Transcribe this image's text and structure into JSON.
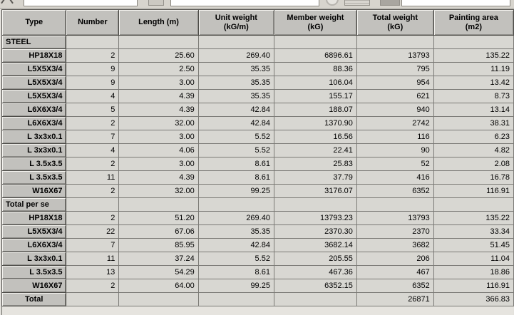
{
  "toolbar": {
    "inputs": [
      {
        "value": ""
      },
      {
        "value": ""
      },
      {
        "value": ""
      }
    ]
  },
  "table": {
    "columns": [
      {
        "id": "type",
        "label_lines": [
          "Type"
        ]
      },
      {
        "id": "number",
        "label_lines": [
          "Number"
        ]
      },
      {
        "id": "length",
        "label_lines": [
          "Length (m)"
        ]
      },
      {
        "id": "unit-weight",
        "label_lines": [
          "Unit weight",
          "(kG/m)"
        ]
      },
      {
        "id": "member-weight",
        "label_lines": [
          "Member weight",
          "(kG)"
        ]
      },
      {
        "id": "total-weight",
        "label_lines": [
          "Total weight",
          "(kG)"
        ]
      },
      {
        "id": "painting-area",
        "label_lines": [
          "Painting area",
          "(m2)"
        ]
      }
    ],
    "rows": [
      {
        "kind": "section",
        "type": "STEEL"
      },
      {
        "kind": "data",
        "type": "HP18X18",
        "values": [
          "2",
          "25.60",
          "269.40",
          "6896.61",
          "13793",
          "135.22"
        ]
      },
      {
        "kind": "data",
        "type": "L5X5X3/4",
        "values": [
          "9",
          "2.50",
          "35.35",
          "88.36",
          "795",
          "11.19"
        ]
      },
      {
        "kind": "data",
        "type": "L5X5X3/4",
        "values": [
          "9",
          "3.00",
          "35.35",
          "106.04",
          "954",
          "13.42"
        ]
      },
      {
        "kind": "data",
        "type": "L5X5X3/4",
        "values": [
          "4",
          "4.39",
          "35.35",
          "155.17",
          "621",
          "8.73"
        ]
      },
      {
        "kind": "data",
        "type": "L6X6X3/4",
        "values": [
          "5",
          "4.39",
          "42.84",
          "188.07",
          "940",
          "13.14"
        ]
      },
      {
        "kind": "data",
        "type": "L6X6X3/4",
        "values": [
          "2",
          "32.00",
          "42.84",
          "1370.90",
          "2742",
          "38.31"
        ]
      },
      {
        "kind": "data",
        "type": "L 3x3x0.1",
        "values": [
          "7",
          "3.00",
          "5.52",
          "16.56",
          "116",
          "6.23"
        ]
      },
      {
        "kind": "data",
        "type": "L 3x3x0.1",
        "values": [
          "4",
          "4.06",
          "5.52",
          "22.41",
          "90",
          "4.82"
        ]
      },
      {
        "kind": "data",
        "type": "L 3.5x3.5",
        "values": [
          "2",
          "3.00",
          "8.61",
          "25.83",
          "52",
          "2.08"
        ]
      },
      {
        "kind": "data",
        "type": "L 3.5x3.5",
        "values": [
          "11",
          "4.39",
          "8.61",
          "37.79",
          "416",
          "16.78"
        ]
      },
      {
        "kind": "data",
        "type": "W16X67",
        "values": [
          "2",
          "32.00",
          "99.25",
          "3176.07",
          "6352",
          "116.91"
        ]
      },
      {
        "kind": "section",
        "type": "Total per se"
      },
      {
        "kind": "data",
        "type": "HP18X18",
        "values": [
          "2",
          "51.20",
          "269.40",
          "13793.23",
          "13793",
          "135.22"
        ]
      },
      {
        "kind": "data",
        "type": "L5X5X3/4",
        "values": [
          "22",
          "67.06",
          "35.35",
          "2370.30",
          "2370",
          "33.34"
        ]
      },
      {
        "kind": "data",
        "type": "L6X6X3/4",
        "values": [
          "7",
          "85.95",
          "42.84",
          "3682.14",
          "3682",
          "51.45"
        ]
      },
      {
        "kind": "data",
        "type": "L 3x3x0.1",
        "values": [
          "11",
          "37.24",
          "5.52",
          "205.55",
          "206",
          "11.04"
        ]
      },
      {
        "kind": "data",
        "type": "L 3.5x3.5",
        "values": [
          "13",
          "54.29",
          "8.61",
          "467.36",
          "467",
          "18.86"
        ]
      },
      {
        "kind": "data",
        "type": "W16X67",
        "values": [
          "2",
          "64.00",
          "99.25",
          "6352.15",
          "6352",
          "116.91"
        ]
      },
      {
        "kind": "total",
        "type": "Total",
        "values": [
          "",
          "",
          "",
          "",
          "26871",
          "366.83"
        ]
      }
    ]
  }
}
